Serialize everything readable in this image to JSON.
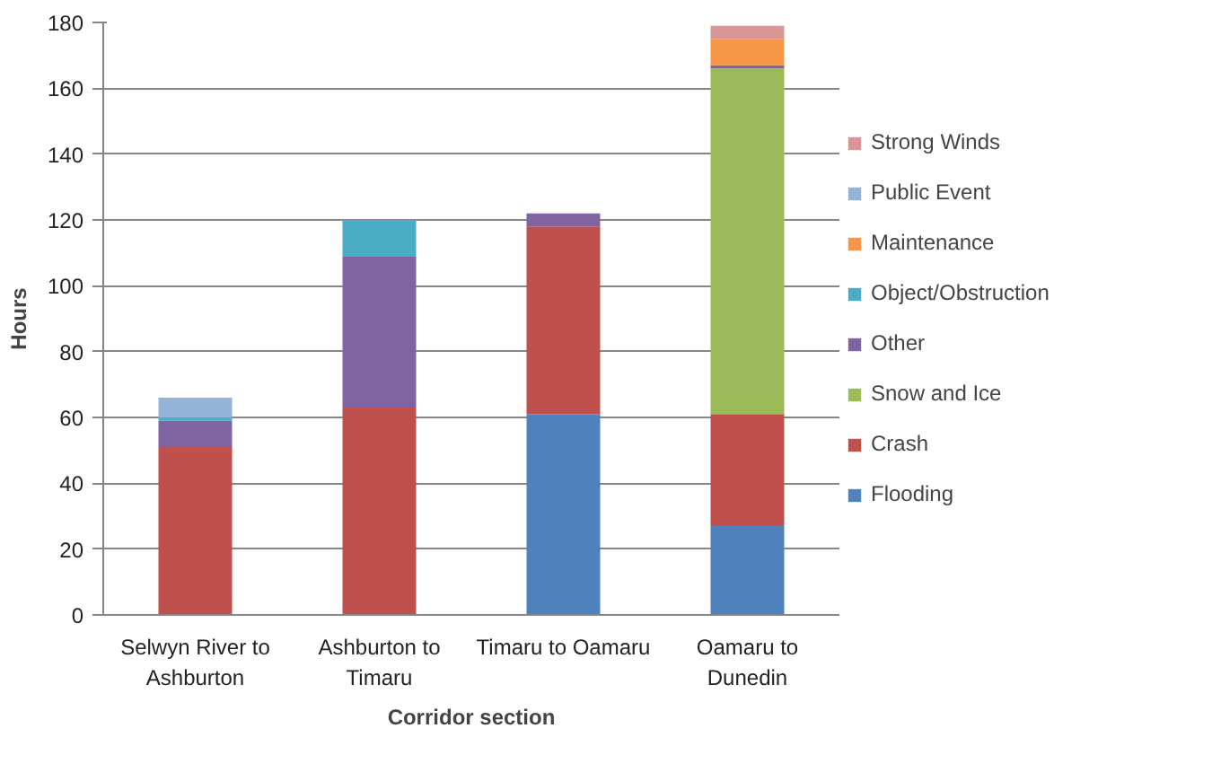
{
  "chart_data": {
    "type": "bar",
    "stacked": true,
    "xlabel": "Corridor section",
    "ylabel": "Hours",
    "categories": [
      "Selwyn River to\nAshburton",
      "Ashburton to\nTimaru",
      "Timaru to Oamaru",
      "Oamaru to\nDunedin"
    ],
    "series": [
      {
        "name": "Flooding",
        "color": "#4f81bd",
        "values": [
          0,
          0,
          61,
          27
        ]
      },
      {
        "name": "Crash",
        "color": "#c0504d",
        "values": [
          51,
          63,
          57,
          34
        ]
      },
      {
        "name": "Snow and Ice",
        "color": "#9bbb59",
        "values": [
          0,
          0,
          0,
          105
        ]
      },
      {
        "name": "Other",
        "color": "#8064a2",
        "values": [
          8,
          46,
          4,
          1
        ]
      },
      {
        "name": "Object/Obstruction",
        "color": "#4bacc6",
        "values": [
          1,
          11,
          0,
          0
        ]
      },
      {
        "name": "Maintenance",
        "color": "#f79646",
        "values": [
          0,
          0,
          0,
          8
        ]
      },
      {
        "name": "Public Event",
        "color": "#95b3d7",
        "values": [
          6,
          0,
          0,
          0
        ]
      },
      {
        "name": "Strong Winds",
        "color": "#d99694",
        "values": [
          0,
          0,
          0,
          4
        ]
      }
    ],
    "ylim": [
      0,
      180
    ],
    "yticks": [
      0,
      20,
      40,
      60,
      80,
      100,
      120,
      140,
      160,
      180
    ],
    "grid": "y",
    "legend": "right"
  }
}
